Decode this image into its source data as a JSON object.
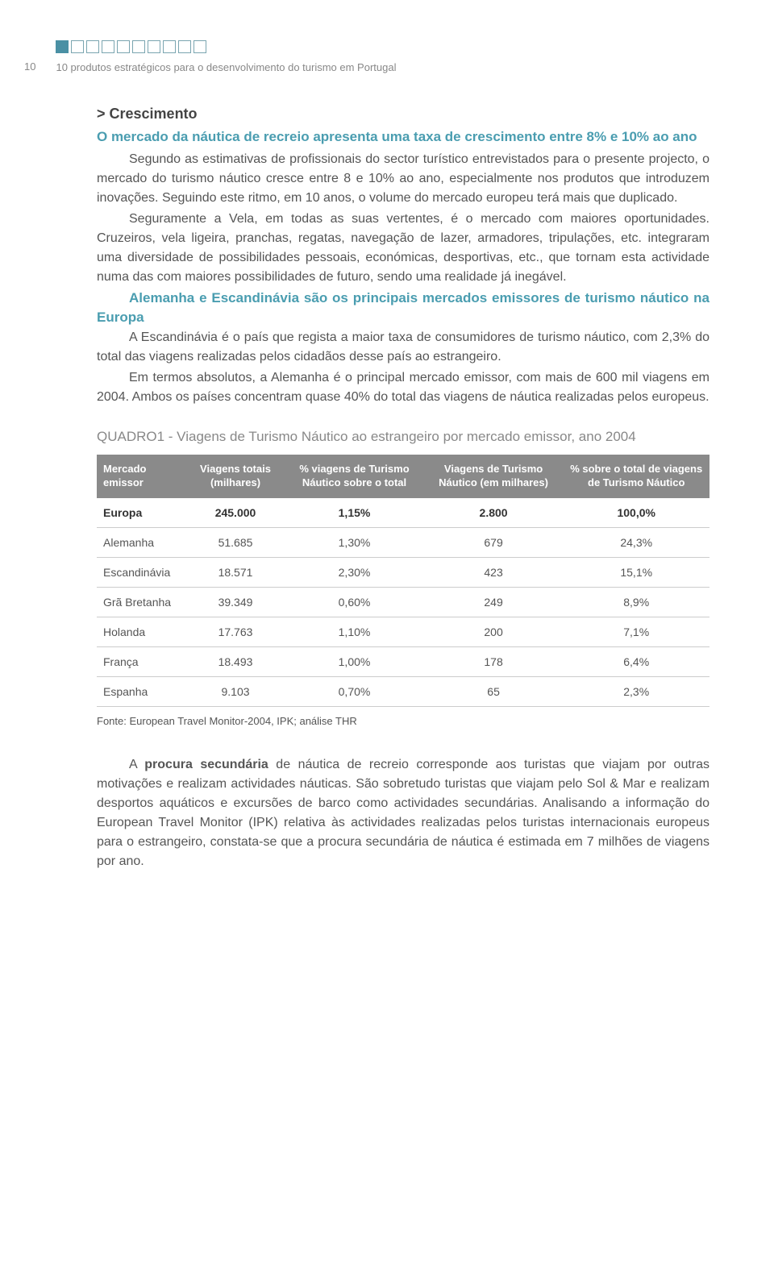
{
  "page_number": "10",
  "header_text": "10 produtos estratégicos para o desenvolvimento do turismo em Portugal",
  "squares": {
    "total": 10,
    "filled_index": 0,
    "filled_color": "#4a90a4",
    "border_color": "#7aa5b0"
  },
  "title": "> Crescimento",
  "subtitle": "O mercado da náutica de recreio apresenta uma taxa de crescimento entre 8% e 10% ao ano",
  "p1": "Segundo as estimativas de profissionais do sector turístico entrevistados para o presente projecto, o mercado do turismo náutico cresce entre 8 e 10% ao ano, especialmente nos produtos que introduzem inovações. Seguindo este ritmo, em 10 anos, o volume do mercado europeu terá mais que duplicado.",
  "p2": "Seguramente a Vela, em todas as suas vertentes, é o mercado com maiores oportunidades. Cruzeiros, vela ligeira, pranchas, regatas, navegação de lazer, armadores, tripulações, etc. integraram uma diversidade de possibilidades pessoais, económicas, desportivas, etc., que tornam esta actividade numa das com maiores possibilidades de futuro, sendo uma realidade já inegável.",
  "mid_title": "Alemanha e Escandinávia são os principais mercados emissores de turismo náutico na Europa",
  "p3": "A Escandinávia é o país que regista a maior taxa de consumidores de turismo náutico, com 2,3% do total das viagens realizadas pelos cidadãos desse país ao estrangeiro.",
  "p4": "Em termos absolutos, a Alemanha é o principal mercado emissor, com mais de 600 mil viagens em 2004. Ambos os países concentram quase 40% do total das viagens de náutica realizadas pelos europeus.",
  "quadro_title": "QUADRO1 - Viagens de Turismo Náutico ao estrangeiro por mercado emissor, ano 2004",
  "table": {
    "header_bg": "#8a8a8a",
    "header_color": "#ffffff",
    "border_color": "#cccccc",
    "columns": [
      "Mercado emissor",
      "Viagens totais (milhares)",
      "% viagens de Turismo Náutico sobre o total",
      "Viagens de Turismo Náutico (em milhares)",
      "% sobre o total de viagens de Turismo Náutico"
    ],
    "rows": [
      [
        "Europa",
        "245.000",
        "1,15%",
        "2.800",
        "100,0%"
      ],
      [
        "Alemanha",
        "51.685",
        "1,30%",
        "679",
        "24,3%"
      ],
      [
        "Escandinávia",
        "18.571",
        "2,30%",
        "423",
        "15,1%"
      ],
      [
        "Grã Bretanha",
        "39.349",
        "0,60%",
        "249",
        "8,9%"
      ],
      [
        "Holanda",
        "17.763",
        "1,10%",
        "200",
        "7,1%"
      ],
      [
        "França",
        "18.493",
        "1,00%",
        "178",
        "6,4%"
      ],
      [
        "Espanha",
        "9.103",
        "0,70%",
        "65",
        "2,3%"
      ]
    ]
  },
  "source": "Fonte: European Travel Monitor-2004, IPK; análise THR",
  "closing_bold_pre": "A ",
  "closing_bold": "procura secundária",
  "closing_rest": " de náutica de recreio corresponde aos turistas que viajam por outras motivações e realizam actividades náuticas. São sobretudo turistas que viajam pelo Sol & Mar e realizam desportos aquáticos e excursões de barco como actividades secundárias. Analisando a informação do European Travel Monitor (IPK) relativa às actividades realizadas pelos turistas internacionais europeus para o estrangeiro, constata-se que a procura secundária de náutica é estimada em 7 milhões de viagens por ano."
}
